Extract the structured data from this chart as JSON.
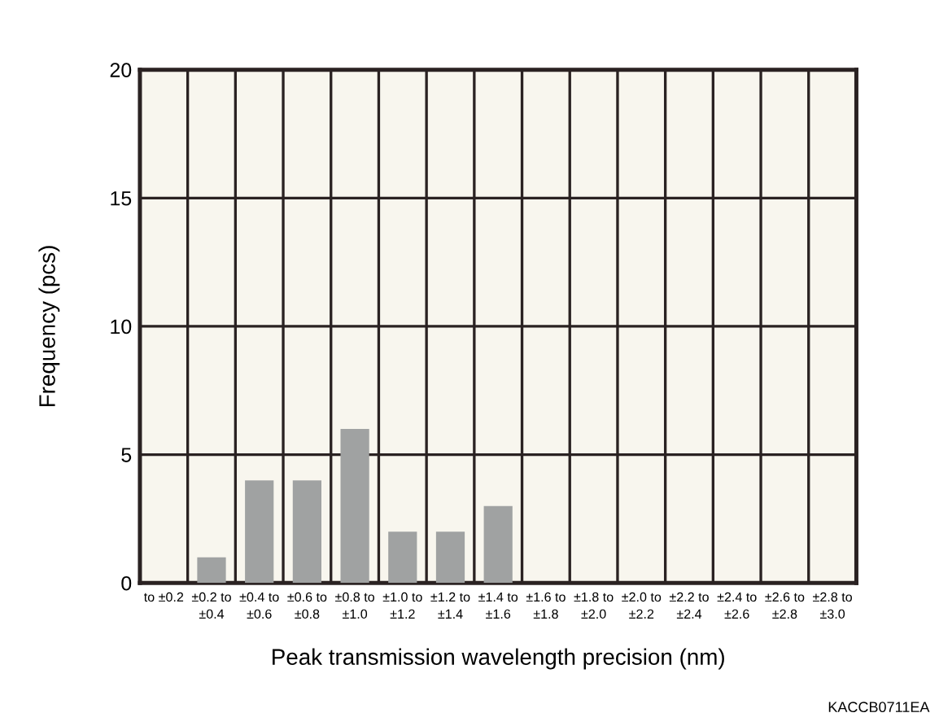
{
  "chart_data": {
    "type": "bar",
    "xlabel": "Peak transmission wavelength precision (nm)",
    "ylabel": "Frequency (pcs)",
    "categories": [
      "to ±0.2",
      "±0.2 to\n±0.4",
      "±0.4 to\n±0.6",
      "±0.6 to\n±0.8",
      "±0.8 to\n±1.0",
      "±1.0 to\n±1.2",
      "±1.2 to\n±1.4",
      "±1.4 to\n±1.6",
      "±1.6 to\n±1.8",
      "±1.8 to\n±2.0",
      "±2.0 to\n±2.2",
      "±2.2 to\n±2.4",
      "±2.4 to\n±2.6",
      "±2.6 to\n±2.8",
      "±2.8 to\n±3.0"
    ],
    "values": [
      0,
      1,
      4,
      4,
      6,
      2,
      2,
      3,
      0,
      0,
      0,
      0,
      0,
      0,
      0
    ],
    "color": "#a0a2a2",
    "ylim": [
      0,
      20
    ],
    "yticks": [
      0,
      5,
      10,
      15,
      20
    ],
    "grid": true,
    "annotations": [
      "KACCB0711EA"
    ]
  }
}
